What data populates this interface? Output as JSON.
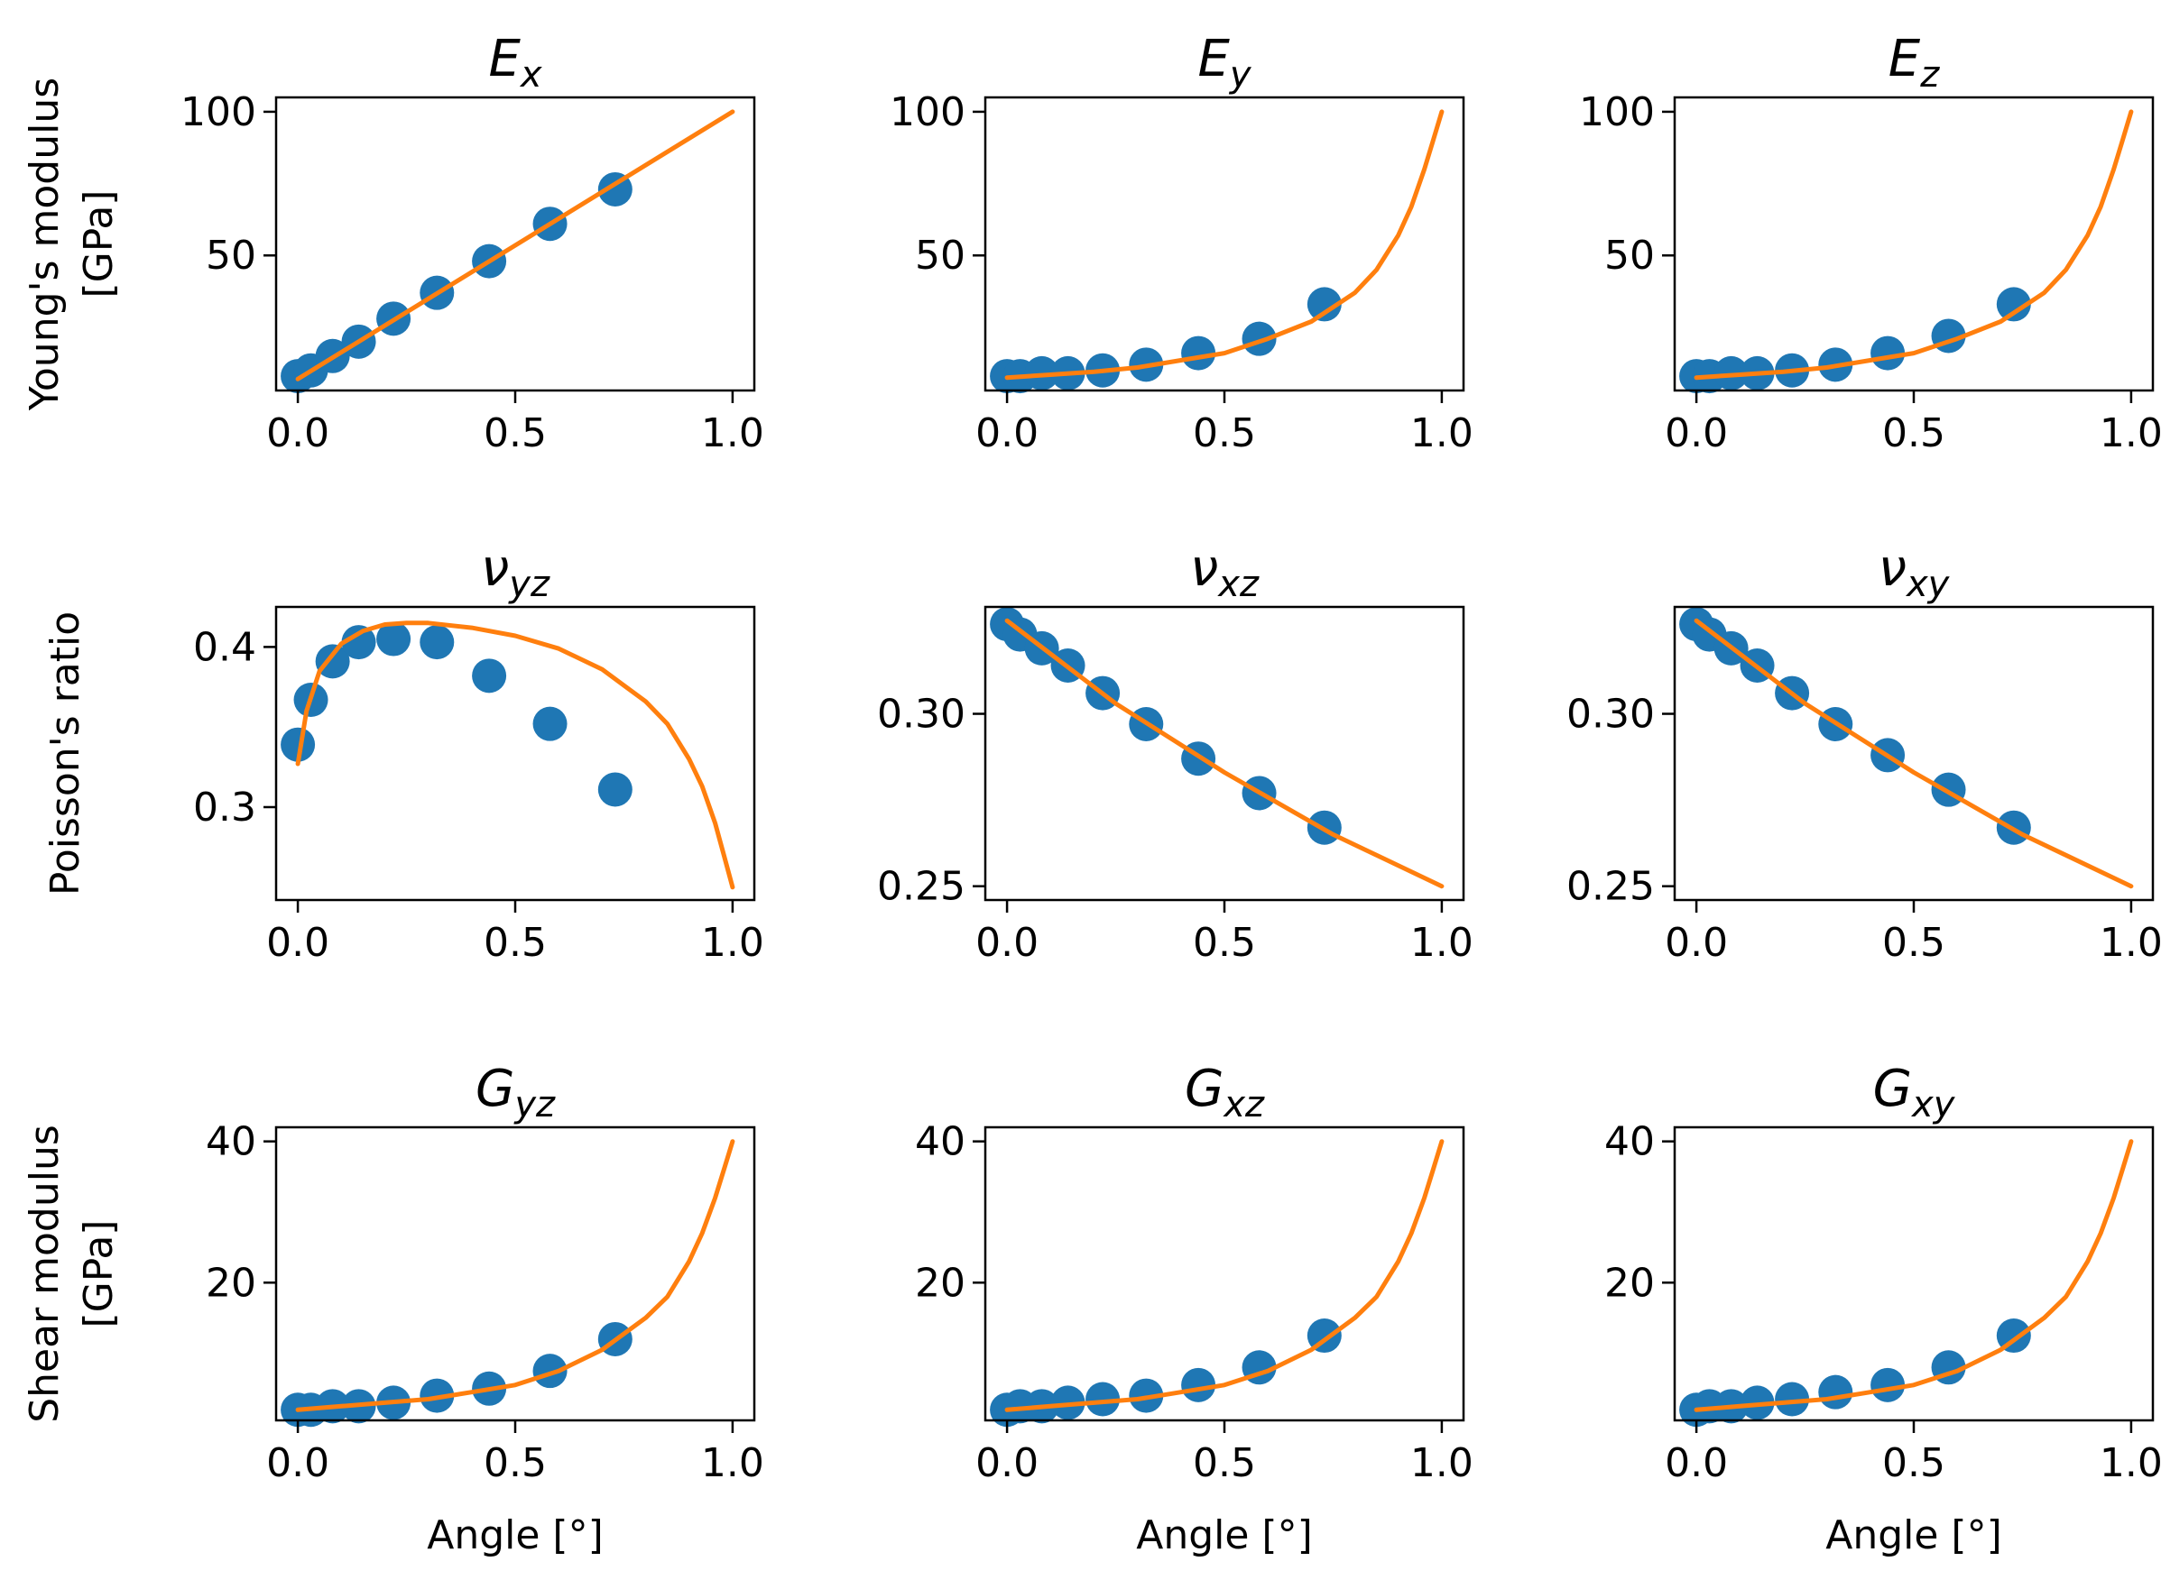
{
  "figure": {
    "row_labels": [
      "Young's modulus [GPa]",
      "Poisson's ratio",
      "Shear modulus [GPa]"
    ],
    "xlabel": "Angle [°]"
  },
  "colors": {
    "points": "#1f77b4",
    "fit": "#ff7f0e",
    "axes": "#000000"
  },
  "chart_data": [
    {
      "type": "scatter",
      "title": "E",
      "title_sub": "x",
      "row": 0,
      "col": 0,
      "ylabel_lines": [
        "Young's modulus",
        "[GPa]"
      ],
      "xlabel": "",
      "xlim": [
        -0.05,
        1.05
      ],
      "ylim": [
        3,
        105
      ],
      "xticks": [
        0.0,
        0.5,
        1.0
      ],
      "xtick_labels": [
        "0.0",
        "0.5",
        "1.0"
      ],
      "yticks": [
        50,
        100
      ],
      "ytick_labels": [
        "50",
        "100"
      ],
      "series": [
        {
          "kind": "points",
          "x": [
            0.0,
            0.03,
            0.08,
            0.14,
            0.22,
            0.32,
            0.44,
            0.58,
            0.73
          ],
          "y": [
            8,
            10,
            15,
            20,
            28,
            37,
            48,
            61,
            73
          ]
        },
        {
          "kind": "line",
          "x": [
            0.0,
            1.0
          ],
          "y": [
            7,
            100
          ]
        }
      ]
    },
    {
      "type": "scatter",
      "title": "E",
      "title_sub": "y",
      "row": 0,
      "col": 1,
      "ylabel_lines": [],
      "xlabel": "",
      "xlim": [
        -0.05,
        1.05
      ],
      "ylim": [
        3,
        105
      ],
      "xticks": [
        0.0,
        0.5,
        1.0
      ],
      "xtick_labels": [
        "0.0",
        "0.5",
        "1.0"
      ],
      "yticks": [
        50,
        100
      ],
      "ytick_labels": [
        "50",
        "100"
      ],
      "series": [
        {
          "kind": "points",
          "x": [
            0.0,
            0.03,
            0.08,
            0.14,
            0.22,
            0.32,
            0.44,
            0.58,
            0.73
          ],
          "y": [
            8,
            8,
            9,
            9,
            10,
            12,
            16,
            21,
            33
          ]
        },
        {
          "kind": "line",
          "x": [
            0.0,
            0.1,
            0.2,
            0.3,
            0.4,
            0.5,
            0.6,
            0.7,
            0.8,
            0.85,
            0.9,
            0.93,
            0.96,
            0.98,
            1.0
          ],
          "y": [
            7.5,
            8.5,
            9.5,
            11,
            13.5,
            16,
            21,
            27,
            37,
            45,
            57,
            67,
            80,
            90,
            100
          ]
        }
      ]
    },
    {
      "type": "scatter",
      "title": "E",
      "title_sub": "z",
      "row": 0,
      "col": 2,
      "ylabel_lines": [],
      "xlabel": "",
      "xlim": [
        -0.05,
        1.05
      ],
      "ylim": [
        3,
        105
      ],
      "xticks": [
        0.0,
        0.5,
        1.0
      ],
      "xtick_labels": [
        "0.0",
        "0.5",
        "1.0"
      ],
      "yticks": [
        50,
        100
      ],
      "ytick_labels": [
        "50",
        "100"
      ],
      "series": [
        {
          "kind": "points",
          "x": [
            0.0,
            0.03,
            0.08,
            0.14,
            0.22,
            0.32,
            0.44,
            0.58,
            0.73
          ],
          "y": [
            8,
            8,
            9,
            9,
            10,
            12,
            16,
            22,
            33
          ]
        },
        {
          "kind": "line",
          "x": [
            0.0,
            0.1,
            0.2,
            0.3,
            0.4,
            0.5,
            0.6,
            0.7,
            0.8,
            0.85,
            0.9,
            0.93,
            0.96,
            0.98,
            1.0
          ],
          "y": [
            7.5,
            8.5,
            9.5,
            11,
            13.5,
            16,
            21,
            27,
            37,
            45,
            57,
            67,
            80,
            90,
            100
          ]
        }
      ]
    },
    {
      "type": "scatter",
      "title": "ν",
      "title_sub": "yz",
      "row": 1,
      "col": 0,
      "ylabel_lines": [
        "Poisson's ratio"
      ],
      "xlabel": "",
      "xlim": [
        -0.05,
        1.05
      ],
      "ylim": [
        0.242,
        0.425
      ],
      "xticks": [
        0.0,
        0.5,
        1.0
      ],
      "xtick_labels": [
        "0.0",
        "0.5",
        "1.0"
      ],
      "yticks": [
        0.3,
        0.4
      ],
      "ytick_labels": [
        "0.3",
        "0.4"
      ],
      "series": [
        {
          "kind": "points",
          "x": [
            0.0,
            0.03,
            0.08,
            0.14,
            0.22,
            0.32,
            0.44,
            0.58,
            0.73
          ],
          "y": [
            0.339,
            0.367,
            0.391,
            0.403,
            0.405,
            0.403,
            0.382,
            0.352,
            0.311
          ]
        },
        {
          "kind": "line",
          "x": [
            0.0,
            0.02,
            0.05,
            0.1,
            0.15,
            0.2,
            0.25,
            0.3,
            0.4,
            0.5,
            0.6,
            0.7,
            0.8,
            0.85,
            0.9,
            0.93,
            0.96,
            0.98,
            1.0
          ],
          "y": [
            0.327,
            0.36,
            0.385,
            0.402,
            0.41,
            0.414,
            0.415,
            0.415,
            0.412,
            0.407,
            0.399,
            0.386,
            0.366,
            0.352,
            0.33,
            0.313,
            0.29,
            0.27,
            0.25
          ]
        }
      ]
    },
    {
      "type": "scatter",
      "title": "ν",
      "title_sub": "xz",
      "row": 1,
      "col": 1,
      "ylabel_lines": [],
      "xlabel": "",
      "xlim": [
        -0.05,
        1.05
      ],
      "ylim": [
        0.246,
        0.331
      ],
      "xticks": [
        0.0,
        0.5,
        1.0
      ],
      "xtick_labels": [
        "0.0",
        "0.5",
        "1.0"
      ],
      "yticks": [
        0.25,
        0.3
      ],
      "ytick_labels": [
        "0.25",
        "0.30"
      ],
      "series": [
        {
          "kind": "points",
          "x": [
            0.0,
            0.03,
            0.08,
            0.14,
            0.22,
            0.32,
            0.44,
            0.58,
            0.73
          ],
          "y": [
            0.326,
            0.323,
            0.319,
            0.314,
            0.306,
            0.297,
            0.287,
            0.277,
            0.267
          ]
        },
        {
          "kind": "line",
          "x": [
            0.0,
            0.25,
            0.5,
            0.75,
            1.0
          ],
          "y": [
            0.327,
            0.303,
            0.283,
            0.265,
            0.25
          ]
        }
      ]
    },
    {
      "type": "scatter",
      "title": "ν",
      "title_sub": "xy",
      "row": 1,
      "col": 2,
      "ylabel_lines": [],
      "xlabel": "",
      "xlim": [
        -0.05,
        1.05
      ],
      "ylim": [
        0.246,
        0.331
      ],
      "xticks": [
        0.0,
        0.5,
        1.0
      ],
      "xtick_labels": [
        "0.0",
        "0.5",
        "1.0"
      ],
      "yticks": [
        0.25,
        0.3
      ],
      "ytick_labels": [
        "0.25",
        "0.30"
      ],
      "series": [
        {
          "kind": "points",
          "x": [
            0.0,
            0.03,
            0.08,
            0.14,
            0.22,
            0.32,
            0.44,
            0.58,
            0.73
          ],
          "y": [
            0.326,
            0.323,
            0.319,
            0.314,
            0.306,
            0.297,
            0.288,
            0.278,
            0.267
          ]
        },
        {
          "kind": "line",
          "x": [
            0.0,
            0.25,
            0.5,
            0.75,
            1.0
          ],
          "y": [
            0.327,
            0.303,
            0.283,
            0.265,
            0.25
          ]
        }
      ]
    },
    {
      "type": "scatter",
      "title": "G",
      "title_sub": "yz",
      "row": 2,
      "col": 0,
      "ylabel_lines": [
        "Shear modulus",
        "[GPa]"
      ],
      "xlabel": "Angle [°]",
      "xlim": [
        -0.05,
        1.05
      ],
      "ylim": [
        0.5,
        42
      ],
      "xticks": [
        0.0,
        0.5,
        1.0
      ],
      "xtick_labels": [
        "0.0",
        "0.5",
        "1.0"
      ],
      "yticks": [
        20,
        40
      ],
      "ytick_labels": [
        "20",
        "40"
      ],
      "series": [
        {
          "kind": "points",
          "x": [
            0.0,
            0.03,
            0.08,
            0.14,
            0.22,
            0.32,
            0.44,
            0.58,
            0.73
          ],
          "y": [
            2,
            2,
            2.5,
            2.5,
            3,
            4,
            5,
            7.5,
            12
          ]
        },
        {
          "kind": "line",
          "x": [
            0.0,
            0.1,
            0.2,
            0.3,
            0.4,
            0.5,
            0.6,
            0.7,
            0.8,
            0.85,
            0.9,
            0.93,
            0.96,
            0.98,
            1.0
          ],
          "y": [
            2,
            2.5,
            3,
            3.5,
            4.5,
            5.5,
            7.5,
            10.5,
            15,
            18,
            23,
            27,
            32,
            36,
            40
          ]
        }
      ]
    },
    {
      "type": "scatter",
      "title": "G",
      "title_sub": "xz",
      "row": 2,
      "col": 1,
      "ylabel_lines": [],
      "xlabel": "Angle [°]",
      "xlim": [
        -0.05,
        1.05
      ],
      "ylim": [
        0.5,
        42
      ],
      "xticks": [
        0.0,
        0.5,
        1.0
      ],
      "xtick_labels": [
        "0.0",
        "0.5",
        "1.0"
      ],
      "yticks": [
        20,
        40
      ],
      "ytick_labels": [
        "20",
        "40"
      ],
      "series": [
        {
          "kind": "points",
          "x": [
            0.0,
            0.03,
            0.08,
            0.14,
            0.22,
            0.32,
            0.44,
            0.58,
            0.73
          ],
          "y": [
            2,
            2.5,
            2.5,
            3,
            3.5,
            4,
            5.5,
            8,
            12.5
          ]
        },
        {
          "kind": "line",
          "x": [
            0.0,
            0.1,
            0.2,
            0.3,
            0.4,
            0.5,
            0.6,
            0.7,
            0.8,
            0.85,
            0.9,
            0.93,
            0.96,
            0.98,
            1.0
          ],
          "y": [
            2,
            2.5,
            3,
            3.5,
            4.5,
            5.5,
            7.5,
            10.5,
            15,
            18,
            23,
            27,
            32,
            36,
            40
          ]
        }
      ]
    },
    {
      "type": "scatter",
      "title": "G",
      "title_sub": "xy",
      "row": 2,
      "col": 2,
      "ylabel_lines": [],
      "xlabel": "Angle [°]",
      "xlim": [
        -0.05,
        1.05
      ],
      "ylim": [
        0.5,
        42
      ],
      "xticks": [
        0.0,
        0.5,
        1.0
      ],
      "xtick_labels": [
        "0.0",
        "0.5",
        "1.0"
      ],
      "yticks": [
        20,
        40
      ],
      "ytick_labels": [
        "20",
        "40"
      ],
      "series": [
        {
          "kind": "points",
          "x": [
            0.0,
            0.03,
            0.08,
            0.14,
            0.22,
            0.32,
            0.44,
            0.58,
            0.73
          ],
          "y": [
            2,
            2.5,
            2.5,
            3,
            3.5,
            4.5,
            5.5,
            8,
            12.5
          ]
        },
        {
          "kind": "line",
          "x": [
            0.0,
            0.1,
            0.2,
            0.3,
            0.4,
            0.5,
            0.6,
            0.7,
            0.8,
            0.85,
            0.9,
            0.93,
            0.96,
            0.98,
            1.0
          ],
          "y": [
            2,
            2.5,
            3,
            3.5,
            4.5,
            5.5,
            7.5,
            10.5,
            15,
            18,
            23,
            27,
            32,
            36,
            40
          ]
        }
      ]
    }
  ]
}
